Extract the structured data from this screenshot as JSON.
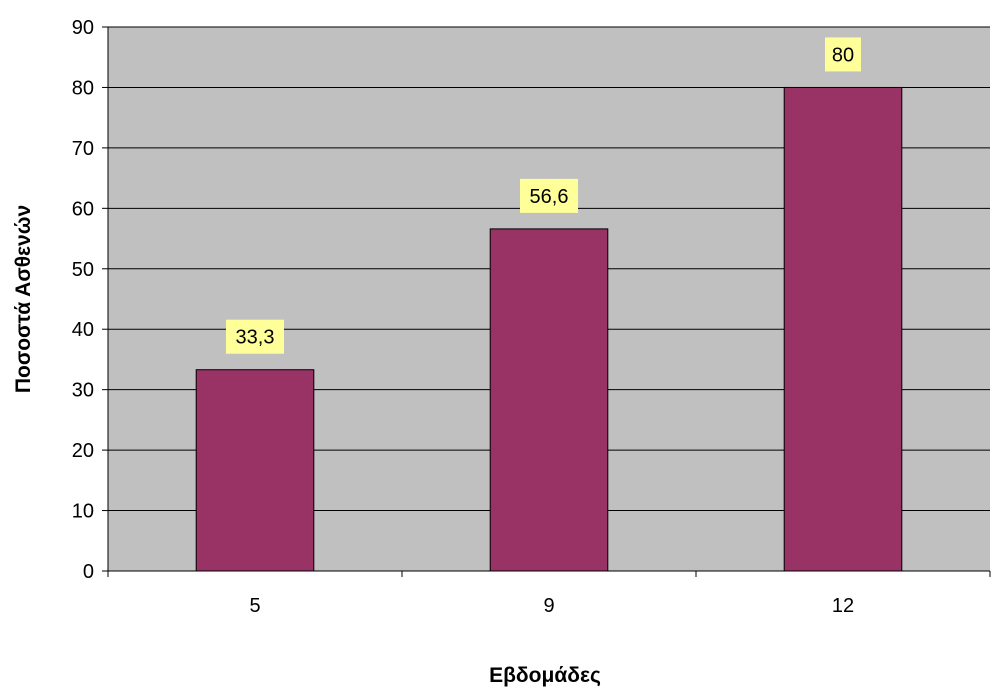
{
  "chart_data": {
    "type": "bar",
    "title": "",
    "xlabel": "Εβδομάδες",
    "ylabel": "Ποσοστά Ασθενών",
    "categories": [
      "5",
      "9",
      "12"
    ],
    "series": [
      {
        "values": [
          33.3,
          56.6,
          80
        ]
      }
    ],
    "data_labels": [
      "33,3",
      "56,6",
      "80"
    ],
    "yticks": [
      0,
      10,
      20,
      30,
      40,
      50,
      60,
      70,
      80,
      90
    ],
    "ylim": [
      0,
      90
    ],
    "grid": true,
    "legend": "none"
  },
  "colors": {
    "plot_background": "#c0c0c0",
    "bar_fill": "#993366",
    "gridline": "#000000",
    "data_label_background": "#ffff99"
  }
}
